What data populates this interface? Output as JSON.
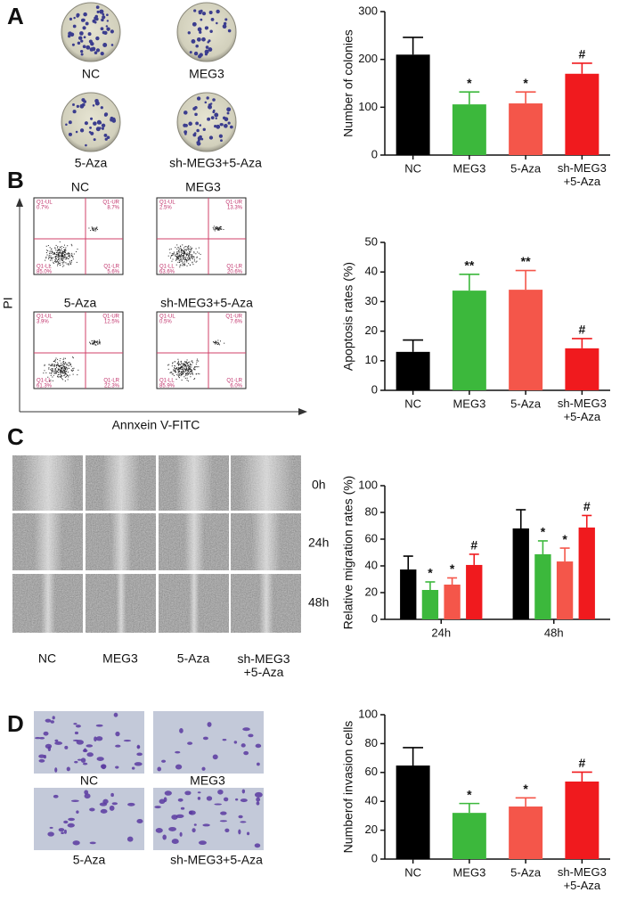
{
  "panel_labels": [
    "A",
    "B",
    "C",
    "D"
  ],
  "panel_a": {
    "captions": [
      "NC",
      "MEG3",
      "5-Aza",
      "sh-MEG3+5-Aza"
    ]
  },
  "panel_b": {
    "plot_titles": [
      "NC",
      "MEG3",
      "5-Aza",
      "sh-MEG3+5-Aza"
    ],
    "y_axis": "PI",
    "x_axis": "Annxein V-FITC",
    "quadrants": [
      {
        "labels": [
          "Q1-UL",
          "Q1-UR",
          "Q1-LL",
          "Q1-LR"
        ],
        "values": [
          "0.7%",
          "8.7%",
          "85.0%",
          "5.6%"
        ]
      },
      {
        "labels": [
          "Q1-UL",
          "Q1-UR",
          "Q1-LL",
          "Q1-LR"
        ],
        "values": [
          "2.5%",
          "13.3%",
          "63.6%",
          "20.6%"
        ]
      },
      {
        "labels": [
          "Q1-UL",
          "Q1-UR",
          "Q1-LL",
          "Q1-LR"
        ],
        "values": [
          "3.9%",
          "12.5%",
          "61.3%",
          "22.3%"
        ]
      },
      {
        "labels": [
          "Q1-UL",
          "Q1-UR",
          "Q1-LL",
          "Q1-LR"
        ],
        "values": [
          "0.5%",
          "7.6%",
          "85.9%",
          "6.0%"
        ]
      }
    ]
  },
  "panel_c": {
    "row_labels": [
      "0h",
      "24h",
      "48h"
    ],
    "column_labels": [
      "NC",
      "MEG3",
      "5-Aza",
      "sh-MEG3\n+5-Aza"
    ]
  },
  "panel_d": {
    "captions": [
      "NC",
      "MEG3",
      "5-Aza",
      "sh-MEG3+5-Aza"
    ]
  },
  "chart_data": [
    {
      "type": "bar",
      "ylabel": "Number of colonies",
      "categories": [
        "NC",
        "MEG3",
        "5-Aza",
        "sh-MEG3\n+5-Aza"
      ],
      "values": [
        210,
        106,
        108,
        170
      ],
      "errors": [
        36,
        26,
        24,
        22
      ],
      "annotations": [
        null,
        "*",
        "*",
        "#"
      ],
      "colors": [
        "#000000",
        "#3cb83c",
        "#f4564a",
        "#f01a1e"
      ],
      "ylim": [
        0,
        300
      ],
      "yticks": [
        0,
        100,
        200,
        300
      ]
    },
    {
      "type": "bar",
      "ylabel": "Apoptosis rates (%)",
      "categories": [
        "NC",
        "MEG3",
        "5-Aza",
        "sh-MEG3\n+5-Aza"
      ],
      "values": [
        13,
        33.7,
        34,
        14.2
      ],
      "errors": [
        4,
        5.5,
        6.5,
        3.3
      ],
      "annotations": [
        null,
        "**",
        "**",
        "#"
      ],
      "colors": [
        "#000000",
        "#3cb83c",
        "#f4564a",
        "#f01a1e"
      ],
      "ylim": [
        0,
        50
      ],
      "yticks": [
        0,
        10,
        20,
        30,
        40,
        50
      ]
    },
    {
      "type": "grouped_bar",
      "ylabel": "Relative  migration  rates (%)",
      "categories": [
        "24h",
        "48h"
      ],
      "series": [
        {
          "color": "#000000",
          "values": [
            37.3,
            68
          ],
          "errors": [
            10,
            14
          ],
          "annotations": [
            null,
            null
          ]
        },
        {
          "color": "#3cb83c",
          "values": [
            22,
            48.7
          ],
          "errors": [
            6,
            10
          ],
          "annotations": [
            "*",
            "*"
          ]
        },
        {
          "color": "#f4564a",
          "values": [
            26,
            43.3
          ],
          "errors": [
            5,
            10
          ],
          "annotations": [
            "*",
            "*"
          ]
        },
        {
          "color": "#f01a1e",
          "values": [
            40.7,
            68.7
          ],
          "errors": [
            8,
            9
          ],
          "annotations": [
            "#",
            "#"
          ]
        }
      ],
      "ylim": [
        0,
        100
      ],
      "yticks": [
        0,
        20,
        40,
        60,
        80,
        100
      ]
    },
    {
      "type": "bar",
      "ylabel": "Numberof invasion cells",
      "categories": [
        "NC",
        "MEG3",
        "5-Aza",
        "sh-MEG3\n+5-Aza"
      ],
      "values": [
        64.8,
        32,
        36.4,
        53.7
      ],
      "errors": [
        12.4,
        6.5,
        6,
        6.5
      ],
      "annotations": [
        null,
        "*",
        "*",
        "#"
      ],
      "colors": [
        "#000000",
        "#3cb83c",
        "#f4564a",
        "#f01a1e"
      ],
      "ylim": [
        0,
        100
      ],
      "yticks": [
        0,
        20,
        40,
        60,
        80,
        100
      ]
    }
  ]
}
